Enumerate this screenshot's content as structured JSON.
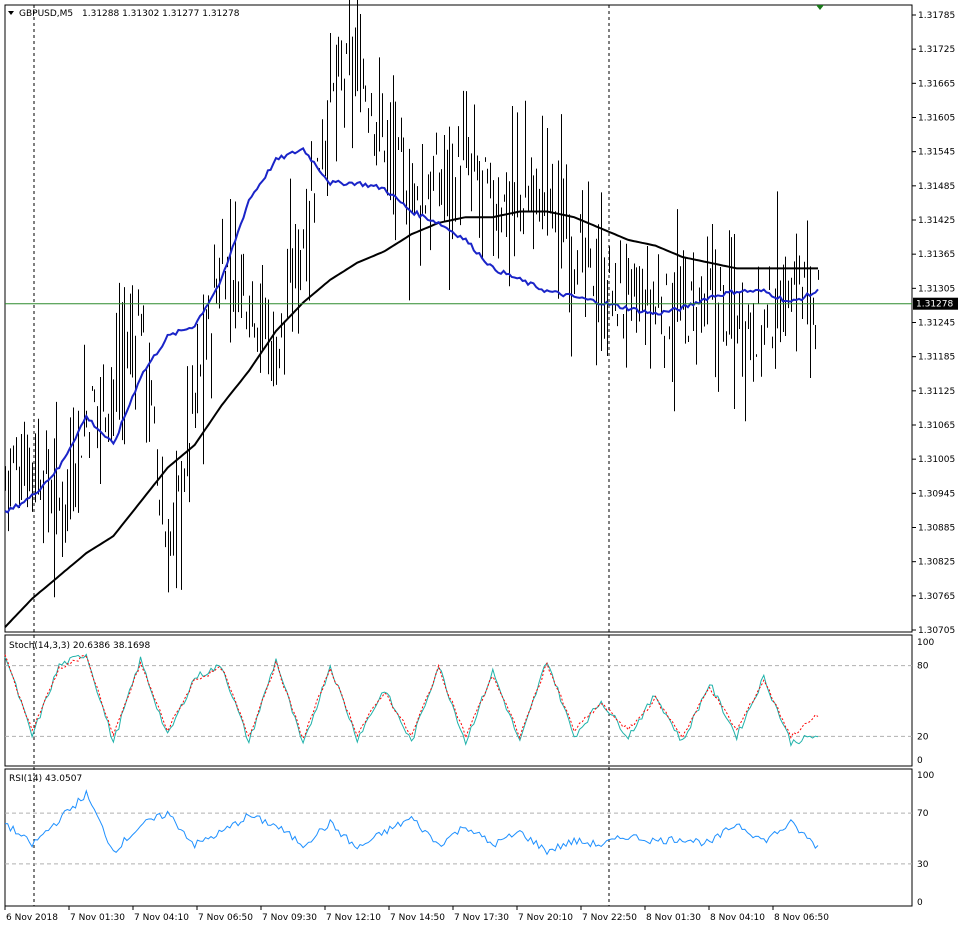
{
  "header": {
    "symbol": "GBPUSD,M5",
    "ohlc": "1.31288 1.31302 1.31277 1.31278"
  },
  "colors": {
    "price_bars": "#000000",
    "ma_fast": "#1a24c8",
    "ma_slow": "#000000",
    "bid_line": "#2e8b2e",
    "stoch_main": "#20b2aa",
    "stoch_signal": "#ff0000",
    "rsi_line": "#1e90ff",
    "grid": "#b0b0b0"
  },
  "price_axis": {
    "current_price_label": "1.31278",
    "current_price": 1.31278
  },
  "stoch": {
    "label": "Stoch(14,3,3) 20.6386 38.1698",
    "levels": [
      100,
      80,
      20,
      0
    ],
    "level_labels": [
      "100",
      "80",
      "20",
      "0"
    ]
  },
  "rsi": {
    "label": "RSI(14) 43.0507",
    "levels": [
      100,
      70,
      30,
      0
    ],
    "level_labels": [
      "100",
      "70",
      "30",
      "0"
    ]
  },
  "chart_data": [
    {
      "type": "line",
      "title": "GBPUSD,M5",
      "note_type": "candlestick/OHLC bars rendered with moving averages",
      "x_ticks": [
        "6 Nov 2018",
        "7 Nov 01:30",
        "7 Nov 04:10",
        "7 Nov 06:50",
        "7 Nov 09:30",
        "7 Nov 12:10",
        "7 Nov 14:50",
        "7 Nov 17:30",
        "7 Nov 20:10",
        "7 Nov 22:50",
        "8 Nov 01:30",
        "8 Nov 04:10",
        "8 Nov 06:50"
      ],
      "y_ticks": [
        "1.31785",
        "1.31725",
        "1.31665",
        "1.31605",
        "1.31545",
        "1.31485",
        "1.31425",
        "1.31365",
        "1.31305",
        "1.31245",
        "1.31185",
        "1.31125",
        "1.31065",
        "1.31005",
        "1.30945",
        "1.30885",
        "1.30825",
        "1.30765",
        "1.30705"
      ],
      "ylim": [
        1.30705,
        1.31785
      ],
      "series": [
        {
          "name": "Price",
          "x_index": [
            0,
            10,
            20,
            30,
            40,
            50,
            60,
            70,
            80,
            90,
            100,
            110,
            120,
            130,
            140,
            150,
            160,
            170,
            180,
            190,
            200,
            210,
            220,
            230,
            240,
            250,
            260,
            270,
            280,
            290,
            300
          ],
          "values": [
            1.3098,
            1.3101,
            1.3092,
            1.3108,
            1.3113,
            1.3126,
            1.3082,
            1.311,
            1.3135,
            1.3131,
            1.3119,
            1.314,
            1.3163,
            1.317,
            1.3157,
            1.3145,
            1.3149,
            1.3152,
            1.3145,
            1.3146,
            1.3148,
            1.3138,
            1.313,
            1.3128,
            1.3127,
            1.3126,
            1.3128,
            1.3126,
            1.3124,
            1.3132,
            1.3128
          ]
        },
        {
          "name": "MA fast",
          "x_index": [
            0,
            10,
            20,
            30,
            40,
            50,
            60,
            70,
            80,
            90,
            100,
            110,
            120,
            130,
            140,
            150,
            160,
            170,
            180,
            190,
            200,
            210,
            220,
            230,
            240,
            250,
            260,
            270,
            280,
            290,
            300
          ],
          "values": [
            1.3091,
            1.3094,
            1.3099,
            1.3108,
            1.3103,
            1.3115,
            1.3122,
            1.3124,
            1.3132,
            1.3146,
            1.3153,
            1.3155,
            1.3149,
            1.3149,
            1.3148,
            1.3144,
            1.3142,
            1.3139,
            1.3134,
            1.3132,
            1.313,
            1.3129,
            1.3128,
            1.3127,
            1.3126,
            1.3127,
            1.3129,
            1.313,
            1.313,
            1.3128,
            1.313
          ]
        },
        {
          "name": "MA slow",
          "x_index": [
            0,
            10,
            20,
            30,
            40,
            50,
            60,
            70,
            80,
            90,
            100,
            110,
            120,
            130,
            140,
            150,
            160,
            170,
            180,
            190,
            200,
            210,
            220,
            230,
            240,
            250,
            260,
            270,
            280,
            290,
            300
          ],
          "values": [
            1.3071,
            1.3076,
            1.308,
            1.3084,
            1.3087,
            1.3093,
            1.3099,
            1.3103,
            1.311,
            1.3116,
            1.3123,
            1.3128,
            1.3132,
            1.3135,
            1.3137,
            1.314,
            1.3142,
            1.3143,
            1.3143,
            1.3144,
            1.3144,
            1.3143,
            1.3141,
            1.3139,
            1.3138,
            1.3136,
            1.3135,
            1.3134,
            1.3134,
            1.3134,
            1.3134
          ]
        }
      ]
    },
    {
      "type": "line",
      "title": "Stoch(14,3,3) 20.6386 38.1698",
      "ylim": [
        0,
        100
      ],
      "series": [
        {
          "name": "Stoch main",
          "x_index": [
            0,
            10,
            20,
            30,
            40,
            50,
            60,
            70,
            80,
            90,
            100,
            110,
            120,
            130,
            140,
            150,
            160,
            170,
            180,
            190,
            200,
            210,
            220,
            230,
            240,
            250,
            260,
            270,
            280,
            290,
            300
          ],
          "values": [
            90,
            20,
            80,
            90,
            15,
            85,
            20,
            70,
            80,
            15,
            85,
            12,
            80,
            18,
            60,
            15,
            80,
            15,
            75,
            15,
            85,
            20,
            50,
            20,
            55,
            15,
            65,
            20,
            70,
            15,
            20.64
          ]
        },
        {
          "name": "Stoch signal",
          "x_index": [
            0,
            10,
            20,
            30,
            40,
            50,
            60,
            70,
            80,
            90,
            100,
            110,
            120,
            130,
            140,
            150,
            160,
            170,
            180,
            190,
            200,
            210,
            220,
            230,
            240,
            250,
            260,
            270,
            280,
            290,
            300
          ],
          "values": [
            88,
            25,
            78,
            88,
            20,
            82,
            25,
            68,
            78,
            20,
            82,
            18,
            78,
            22,
            58,
            20,
            78,
            20,
            72,
            20,
            82,
            25,
            48,
            25,
            52,
            20,
            62,
            25,
            68,
            20,
            38.17
          ]
        }
      ]
    },
    {
      "type": "line",
      "title": "RSI(14) 43.0507",
      "ylim": [
        0,
        100
      ],
      "series": [
        {
          "name": "RSI",
          "x_index": [
            0,
            10,
            20,
            30,
            40,
            50,
            60,
            70,
            80,
            90,
            100,
            110,
            120,
            130,
            140,
            150,
            160,
            170,
            180,
            190,
            200,
            210,
            220,
            230,
            240,
            250,
            260,
            270,
            280,
            290,
            300
          ],
          "values": [
            62,
            45,
            65,
            85,
            40,
            60,
            70,
            45,
            55,
            68,
            60,
            45,
            62,
            42,
            55,
            66,
            45,
            60,
            45,
            55,
            40,
            48,
            45,
            52,
            48,
            50,
            46,
            62,
            48,
            62,
            43.05
          ]
        }
      ]
    }
  ]
}
